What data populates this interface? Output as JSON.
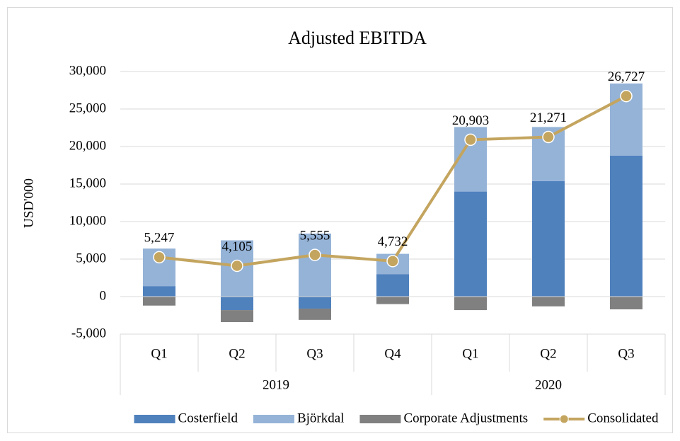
{
  "chart_data": {
    "type": "bar",
    "title": "Adjusted EBITDA",
    "y_label": "USD'000",
    "groups": [
      {
        "name": "2019",
        "categories": [
          "Q1",
          "Q2",
          "Q3",
          "Q4"
        ]
      },
      {
        "name": "2020",
        "categories": [
          "Q1",
          "Q2",
          "Q3"
        ]
      }
    ],
    "series": [
      {
        "name": "Costerfield",
        "type": "bar",
        "color": "#4f81bd",
        "values": [
          1400,
          -1800,
          -1600,
          3000,
          14000,
          15400,
          18800
        ]
      },
      {
        "name": "Björkdal",
        "type": "bar",
        "color": "#95b3d7",
        "values": [
          5000,
          7500,
          8400,
          2700,
          8600,
          7200,
          9600
        ]
      },
      {
        "name": "Corporate Adjustments",
        "type": "bar",
        "color": "#808080",
        "values": [
          -1200,
          -1600,
          -1500,
          -1000,
          -1800,
          -1300,
          -1700
        ]
      },
      {
        "name": "Consolidated",
        "type": "line",
        "color": "#c4a55f",
        "values": [
          5247,
          4105,
          5555,
          4732,
          20903,
          21271,
          26727
        ],
        "value_labels": [
          "5,247",
          "4,105",
          "5,555",
          "4,732",
          "20,903",
          "21,271",
          "26,727"
        ]
      }
    ],
    "ylim": [
      -5000,
      30000
    ],
    "yticks": [
      {
        "value": -5000,
        "label": "-5,000"
      },
      0,
      {
        "value": 5000,
        "label": "5,000"
      },
      {
        "value": 10000,
        "label": "10,000"
      },
      {
        "value": 15000,
        "label": "15,000"
      },
      {
        "value": 20000,
        "label": "20,000"
      },
      {
        "value": 25000,
        "label": "25,000"
      },
      {
        "value": 30000,
        "label": "30,000"
      }
    ],
    "grid": true,
    "legend": "bottom"
  }
}
